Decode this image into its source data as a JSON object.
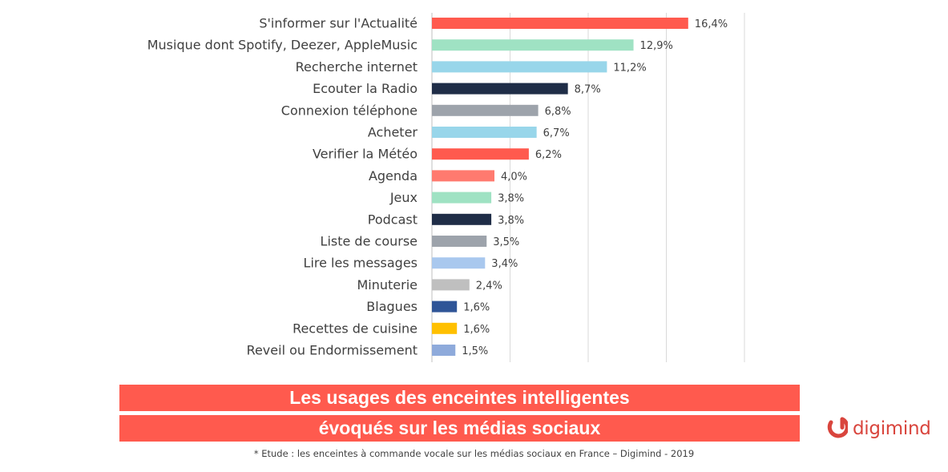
{
  "chart_data": {
    "type": "bar",
    "orientation": "horizontal",
    "categories": [
      "S'informer sur l'Actualité",
      "Musique dont Spotify, Deezer, AppleMusic",
      "Recherche internet",
      "Ecouter la Radio",
      "Connexion téléphone",
      "Acheter",
      "Verifier la Météo",
      "Agenda",
      "Jeux",
      "Podcast",
      "Liste de course",
      "Lire les messages",
      "Minuterie",
      "Blagues",
      "Recettes de cuisine",
      "Reveil ou Endormissement"
    ],
    "values": [
      16.4,
      12.9,
      11.2,
      8.7,
      6.8,
      6.7,
      6.2,
      4.0,
      3.8,
      3.8,
      3.5,
      3.4,
      2.4,
      1.6,
      1.6,
      1.5
    ],
    "value_labels": [
      "16,4%",
      "12,9%",
      "11,2%",
      "8,7%",
      "6,8%",
      "6,7%",
      "6,2%",
      "4,0%",
      "3,8%",
      "3,8%",
      "3,5%",
      "3,4%",
      "2,4%",
      "1,6%",
      "1,6%",
      "1,5%"
    ],
    "colors": [
      "#ff5a4e",
      "#9fe2c3",
      "#98d6ea",
      "#1f2d47",
      "#9da3ab",
      "#98d6ea",
      "#ff5a4e",
      "#ff7a6f",
      "#9fe2c3",
      "#1f2d47",
      "#9da3ab",
      "#a9c8ee",
      "#bfbfbf",
      "#2f5597",
      "#ffc000",
      "#8eaadb"
    ],
    "xlim": [
      0,
      20
    ],
    "grid": true,
    "gridline_values": [
      0,
      5,
      10,
      15,
      20
    ],
    "legend": "none",
    "title": "",
    "xlabel": "",
    "ylabel": ""
  },
  "banner": {
    "line1": "Les usages des enceintes intelligentes",
    "line2": "évoqués sur les médias sociaux",
    "color": "#ff5a4e"
  },
  "footnote": "*  Etude : les enceintes à commande vocale sur les médias sociaux en France – Digimind - 2019",
  "logo": {
    "text": "digimind",
    "color": "#d9453d"
  }
}
